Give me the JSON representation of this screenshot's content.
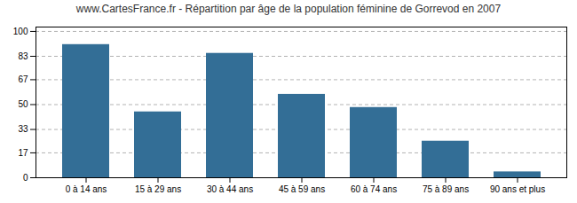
{
  "chart_data": {
    "type": "bar",
    "title": "www.CartesFrance.fr - Répartition par âge de la population féminine de Gorrevod en 2007",
    "categories": [
      "0 à 14 ans",
      "15 à 29 ans",
      "30 à 44 ans",
      "45 à 59 ans",
      "60 à 74 ans",
      "75 à 89 ans",
      "90 ans et plus"
    ],
    "values": [
      91,
      45,
      85,
      57,
      48,
      25,
      4
    ],
    "color": "#336e96",
    "ylim": [
      0,
      103
    ],
    "yticks": [
      0,
      17,
      33,
      50,
      67,
      83,
      100
    ],
    "grid": true
  }
}
